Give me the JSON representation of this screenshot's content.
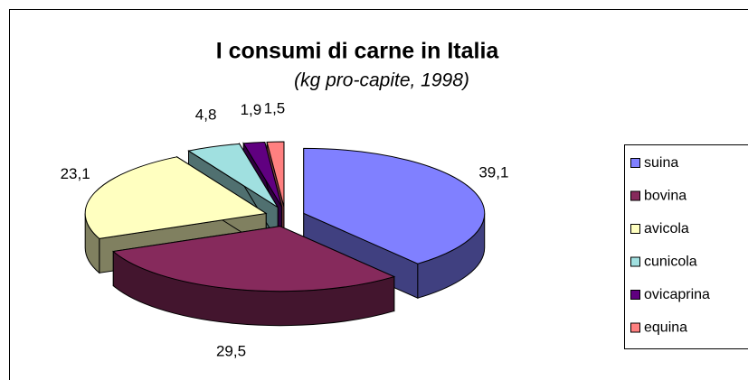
{
  "chart_data": {
    "type": "pie3d",
    "title": "I consumi di carne in Italia",
    "subtitle": "(kg pro-capite, 1998)",
    "categories": [
      "suina",
      "bovina",
      "avicola",
      "cunicola",
      "ovicaprina",
      "equina"
    ],
    "values": [
      39.1,
      29.5,
      23.1,
      4.8,
      1.9,
      1.5
    ],
    "value_labels": [
      "39,1",
      "29,5",
      "23,1",
      "4,8",
      "1,9",
      "1,5"
    ],
    "colors": [
      "#8080ff",
      "#862a5c",
      "#ffffc0",
      "#a0e0e0",
      "#600080",
      "#ff8080"
    ],
    "legend": "right"
  }
}
